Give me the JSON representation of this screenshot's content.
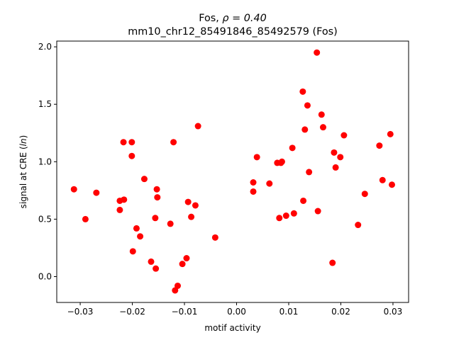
{
  "chart_data": {
    "type": "scatter",
    "title_line1_prefix": "Fos, ",
    "title_line1_rho": "ρ = 0.40",
    "title_line2": "mm10_chr12_85491846_85492579 (Fos)",
    "xlabel": "motif activity",
    "ylabel": "signal at CRE (ln)",
    "ylabel_prefix": "signal at CRE (",
    "ylabel_italic": "ln",
    "ylabel_suffix": ")",
    "xlim": [
      -0.0345,
      0.033
    ],
    "ylim": [
      -0.225,
      2.05
    ],
    "xticks": [
      -0.03,
      -0.02,
      -0.01,
      0.0,
      0.01,
      0.02,
      0.03
    ],
    "xtick_labels": [
      "−0.03",
      "−0.02",
      "−0.01",
      "0.00",
      "0.01",
      "0.02",
      "0.03"
    ],
    "yticks": [
      0.0,
      0.5,
      1.0,
      1.5,
      2.0
    ],
    "ytick_labels": [
      "0.0",
      "0.5",
      "1.0",
      "1.5",
      "2.0"
    ],
    "marker_color": "#ff0000",
    "grid": false,
    "points": [
      {
        "x": -0.0312,
        "y": 0.76
      },
      {
        "x": -0.029,
        "y": 0.5
      },
      {
        "x": -0.0269,
        "y": 0.73
      },
      {
        "x": -0.0224,
        "y": 0.66
      },
      {
        "x": -0.0224,
        "y": 0.58
      },
      {
        "x": -0.0217,
        "y": 1.17
      },
      {
        "x": -0.0216,
        "y": 0.67
      },
      {
        "x": -0.0201,
        "y": 1.17
      },
      {
        "x": -0.0201,
        "y": 1.05
      },
      {
        "x": -0.0199,
        "y": 0.22
      },
      {
        "x": -0.0192,
        "y": 0.42
      },
      {
        "x": -0.0185,
        "y": 0.35
      },
      {
        "x": -0.0177,
        "y": 0.85
      },
      {
        "x": -0.0164,
        "y": 0.13
      },
      {
        "x": -0.0156,
        "y": 0.51
      },
      {
        "x": -0.0155,
        "y": 0.07
      },
      {
        "x": -0.0153,
        "y": 0.76
      },
      {
        "x": -0.0152,
        "y": 0.69
      },
      {
        "x": -0.0127,
        "y": 0.46
      },
      {
        "x": -0.0121,
        "y": 1.17
      },
      {
        "x": -0.0118,
        "y": -0.12
      },
      {
        "x": -0.0113,
        "y": -0.08
      },
      {
        "x": -0.0104,
        "y": 0.11
      },
      {
        "x": -0.0096,
        "y": 0.16
      },
      {
        "x": -0.0093,
        "y": 0.65
      },
      {
        "x": -0.0087,
        "y": 0.52
      },
      {
        "x": -0.0079,
        "y": 0.62
      },
      {
        "x": -0.0074,
        "y": 1.31
      },
      {
        "x": -0.0041,
        "y": 0.34
      },
      {
        "x": 0.0032,
        "y": 0.82
      },
      {
        "x": 0.0032,
        "y": 0.74
      },
      {
        "x": 0.0039,
        "y": 1.04
      },
      {
        "x": 0.0063,
        "y": 0.81
      },
      {
        "x": 0.0078,
        "y": 0.99
      },
      {
        "x": 0.0082,
        "y": 0.51
      },
      {
        "x": 0.0085,
        "y": 0.99
      },
      {
        "x": 0.0087,
        "y": 1.0
      },
      {
        "x": 0.0095,
        "y": 0.53
      },
      {
        "x": 0.0107,
        "y": 1.12
      },
      {
        "x": 0.011,
        "y": 0.55
      },
      {
        "x": 0.0127,
        "y": 1.61
      },
      {
        "x": 0.0128,
        "y": 0.66
      },
      {
        "x": 0.0131,
        "y": 1.28
      },
      {
        "x": 0.0136,
        "y": 1.49
      },
      {
        "x": 0.0139,
        "y": 0.91
      },
      {
        "x": 0.0154,
        "y": 1.95
      },
      {
        "x": 0.0156,
        "y": 0.57
      },
      {
        "x": 0.0163,
        "y": 1.41
      },
      {
        "x": 0.0166,
        "y": 1.3
      },
      {
        "x": 0.0184,
        "y": 0.12
      },
      {
        "x": 0.0187,
        "y": 1.08
      },
      {
        "x": 0.019,
        "y": 0.95
      },
      {
        "x": 0.0199,
        "y": 1.04
      },
      {
        "x": 0.0206,
        "y": 1.23
      },
      {
        "x": 0.0233,
        "y": 0.45
      },
      {
        "x": 0.0246,
        "y": 0.72
      },
      {
        "x": 0.0274,
        "y": 1.14
      },
      {
        "x": 0.028,
        "y": 0.84
      },
      {
        "x": 0.0295,
        "y": 1.24
      },
      {
        "x": 0.0298,
        "y": 0.8
      }
    ]
  }
}
